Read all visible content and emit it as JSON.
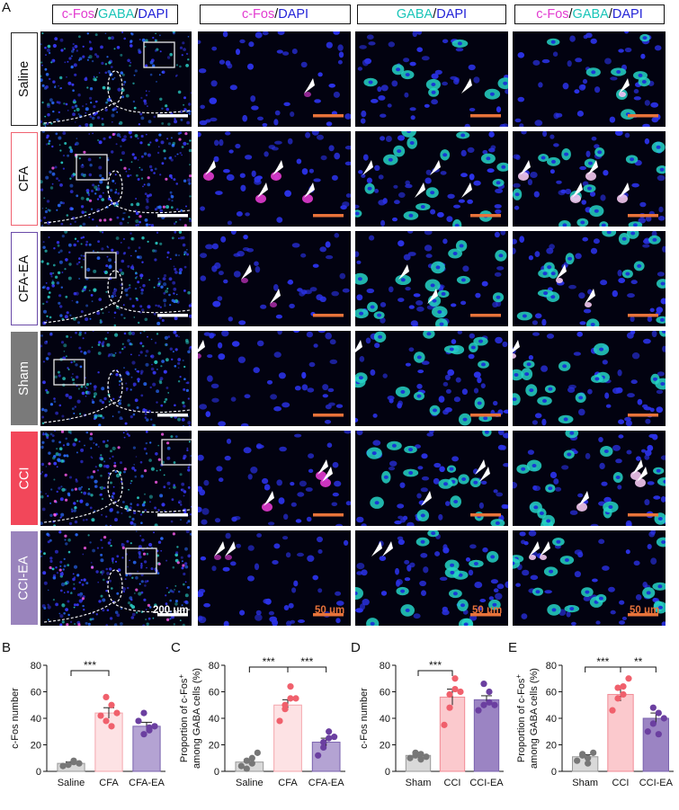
{
  "figure": {
    "panel_letters": [
      "A",
      "B",
      "C",
      "D",
      "E"
    ],
    "column_headers": [
      {
        "parts": [
          {
            "text": "c-Fos",
            "color": "#e23bd0"
          },
          {
            "text": "/",
            "color": "#111111"
          },
          {
            "text": "GABA",
            "color": "#19c5b8"
          },
          {
            "text": "/",
            "color": "#111111"
          },
          {
            "text": "DAPI",
            "color": "#2323d8"
          }
        ]
      },
      {
        "parts": [
          {
            "text": "c-Fos",
            "color": "#e23bd0"
          },
          {
            "text": "/",
            "color": "#111111"
          },
          {
            "text": "DAPI",
            "color": "#2323d8"
          }
        ]
      },
      {
        "parts": [
          {
            "text": "GABA",
            "color": "#19c5b8"
          },
          {
            "text": "/",
            "color": "#111111"
          },
          {
            "text": "DAPI",
            "color": "#2323d8"
          }
        ]
      },
      {
        "parts": [
          {
            "text": "c-Fos",
            "color": "#e23bd0"
          },
          {
            "text": "/",
            "color": "#111111"
          },
          {
            "text": "GABA",
            "color": "#19c5b8"
          },
          {
            "text": "/",
            "color": "#111111"
          },
          {
            "text": "DAPI",
            "color": "#2323d8"
          }
        ]
      }
    ],
    "rows": [
      {
        "label": "Saline",
        "style": "outline",
        "color": "#222222",
        "text_color": "#111111"
      },
      {
        "label": "CFA",
        "style": "outline",
        "color": "#f06270",
        "text_color": "#111111"
      },
      {
        "label": "CFA-EA",
        "style": "outline",
        "color": "#6a4aa8",
        "text_color": "#111111"
      },
      {
        "label": "Sham",
        "style": "filled",
        "color": "#7a7a7a",
        "text_color": "#ffffff"
      },
      {
        "label": "CCI",
        "style": "filled",
        "color": "#f2475a",
        "text_color": "#ffffff"
      },
      {
        "label": "CCI-EA",
        "style": "filled",
        "color": "#9a84bd",
        "text_color": "#ffffff"
      }
    ],
    "scale_bars": {
      "overview": "200 μm",
      "zoom": "50 μm",
      "overview_color": "#ffffff",
      "zoom_color": "#e8733a"
    }
  },
  "chart_data": [
    {
      "panel": "B",
      "type": "bar",
      "categories": [
        "Saline",
        "CFA",
        "CFA-EA"
      ],
      "values": [
        6,
        44,
        34
      ],
      "sem": [
        1.2,
        4,
        3
      ],
      "points": [
        [
          4,
          5,
          7,
          5,
          8,
          6
        ],
        [
          42,
          56,
          50,
          38,
          34,
          44
        ],
        [
          38,
          44,
          33,
          28,
          31,
          34
        ]
      ],
      "ylabel": "c-Fos number",
      "ylim": [
        0,
        80
      ],
      "yticks": [
        0,
        20,
        40,
        60,
        80
      ],
      "colors": [
        "#d9d9d9",
        "#fde2e4",
        "#b4a3d3"
      ],
      "edge_colors": [
        "#999999",
        "#f4a6ad",
        "#7a62ae"
      ],
      "point_colors": [
        "#777777",
        "#f0606c",
        "#6b3fa0"
      ],
      "significance": [
        {
          "from": 0,
          "to": 1,
          "label": "***"
        }
      ]
    },
    {
      "panel": "C",
      "type": "bar",
      "categories": [
        "Saline",
        "CFA",
        "CFA-EA"
      ],
      "values": [
        7,
        50,
        22
      ],
      "sem": [
        2,
        4,
        3
      ],
      "points": [
        [
          4,
          8,
          10,
          2,
          6,
          14
        ],
        [
          38,
          47,
          55,
          50,
          64,
          55
        ],
        [
          12,
          18,
          25,
          22,
          30,
          26
        ]
      ],
      "ylabel": "Proportion of c-Fos⁺ among GABA cells (%)",
      "ylabel_lines": [
        "Proportion of c-Fos",
        "among GABA cells (%)"
      ],
      "ylim": [
        0,
        80
      ],
      "yticks": [
        0,
        20,
        40,
        60,
        80
      ],
      "colors": [
        "#d9d9d9",
        "#fde2e4",
        "#b4a3d3"
      ],
      "edge_colors": [
        "#999999",
        "#f4a6ad",
        "#7a62ae"
      ],
      "point_colors": [
        "#777777",
        "#f0606c",
        "#6b3fa0"
      ],
      "significance": [
        {
          "from": 0,
          "to": 1,
          "label": "***"
        },
        {
          "from": 1,
          "to": 2,
          "label": "***"
        }
      ]
    },
    {
      "panel": "D",
      "type": "bar",
      "categories": [
        "Sham",
        "CCI",
        "CCI-EA"
      ],
      "values": [
        12,
        56,
        54
      ],
      "sem": [
        1.5,
        6,
        3
      ],
      "points": [
        [
          10,
          12,
          9,
          14,
          13,
          11
        ],
        [
          35,
          48,
          62,
          58,
          70,
          60
        ],
        [
          46,
          50,
          60,
          66,
          52,
          50
        ]
      ],
      "ylabel": "c-Fos number",
      "ylim": [
        0,
        80
      ],
      "yticks": [
        0,
        20,
        40,
        60,
        80
      ],
      "colors": [
        "#d9d9d9",
        "#fbc9cd",
        "#9b84c3"
      ],
      "edge_colors": [
        "#999999",
        "#f28b95",
        "#7a62ae"
      ],
      "point_colors": [
        "#777777",
        "#f0606c",
        "#6b3fa0"
      ],
      "significance": [
        {
          "from": 0,
          "to": 1,
          "label": "***"
        }
      ]
    },
    {
      "panel": "E",
      "type": "bar",
      "categories": [
        "Sham",
        "CCI",
        "CCI-EA"
      ],
      "values": [
        11,
        58,
        40
      ],
      "sem": [
        1.5,
        5,
        4
      ],
      "points": [
        [
          8,
          12,
          10,
          13,
          6,
          14
        ],
        [
          46,
          63,
          58,
          55,
          64,
          70
        ],
        [
          30,
          36,
          44,
          48,
          28,
          40
        ]
      ],
      "ylabel": "Proportion of c-Fos⁺ among GABA cells (%)",
      "ylabel_lines": [
        "Proportion of c-Fos",
        "among GABA cells (%)"
      ],
      "ylim": [
        0,
        80
      ],
      "yticks": [
        0,
        20,
        40,
        60,
        80
      ],
      "colors": [
        "#d9d9d9",
        "#fbc9cd",
        "#9b84c3"
      ],
      "edge_colors": [
        "#999999",
        "#f28b95",
        "#7a62ae"
      ],
      "point_colors": [
        "#777777",
        "#f0606c",
        "#6b3fa0"
      ],
      "significance": [
        {
          "from": 0,
          "to": 1,
          "label": "***"
        },
        {
          "from": 1,
          "to": 2,
          "label": "**"
        }
      ]
    }
  ]
}
